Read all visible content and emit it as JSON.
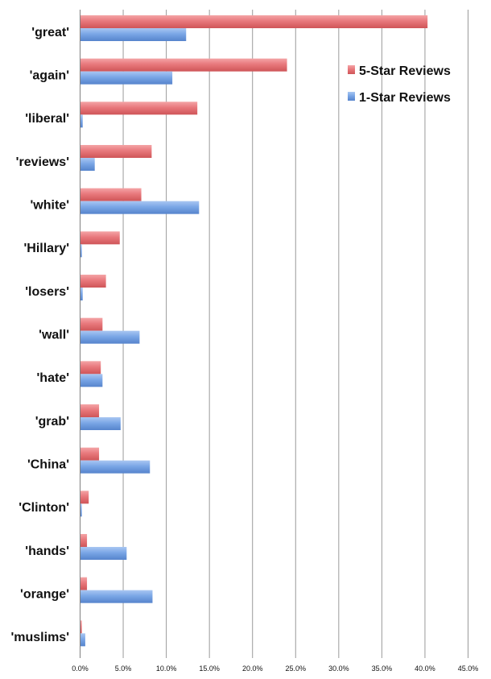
{
  "chart_data": {
    "type": "bar",
    "orientation": "horizontal",
    "categories": [
      "'great'",
      "'again'",
      "'liberal'",
      "'reviews'",
      "'white'",
      "'Hillary'",
      "'losers'",
      "'wall'",
      "'hate'",
      "'grab'",
      "'China'",
      "'Clinton'",
      "'hands'",
      "'orange'",
      "'muslims'"
    ],
    "series": [
      {
        "name": "5-Star Reviews",
        "color": "#e8787c",
        "values": [
          40.3,
          24.0,
          13.6,
          8.3,
          7.1,
          4.6,
          3.0,
          2.6,
          2.4,
          2.2,
          2.2,
          1.0,
          0.8,
          0.8,
          0.2
        ]
      },
      {
        "name": "1-Star Reviews",
        "color": "#7aa6e6",
        "values": [
          12.3,
          10.7,
          0.3,
          1.7,
          13.8,
          0.2,
          0.3,
          6.9,
          2.6,
          4.7,
          8.1,
          0.2,
          5.4,
          8.4,
          0.6
        ]
      }
    ],
    "xlim": [
      0,
      45
    ],
    "x_ticks": [
      "0.0%",
      "5.0%",
      "10.0%",
      "15.0%",
      "20.0%",
      "25.0%",
      "30.0%",
      "35.0%",
      "40.0%",
      "45.0%"
    ],
    "x_tick_values": [
      0,
      5,
      10,
      15,
      20,
      25,
      30,
      35,
      40,
      45
    ],
    "grid": "vertical",
    "legend_position": "top-right",
    "title": "",
    "xlabel": "",
    "ylabel": ""
  }
}
